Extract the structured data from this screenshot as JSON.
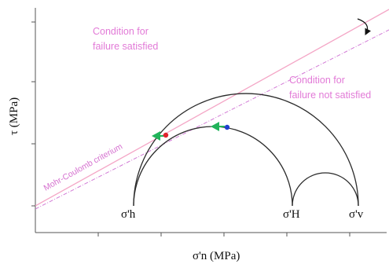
{
  "axes": {
    "x_label": "σ'n (MPa)",
    "y_label": "τ (MPa)"
  },
  "annotations": {
    "satisfied_line1": "Condition for",
    "satisfied_line2": "failure satisfied",
    "not_satisfied_line1": "Condition for",
    "not_satisfied_line2": "failure not satisfied",
    "criterion_label": "Mohr-Coulomb criterium"
  },
  "stress_labels": {
    "sigma_h": "σ'h",
    "sigma_H": "σ'H",
    "sigma_v": "σ'v"
  },
  "colors": {
    "criterion_line": "#f4a6c6",
    "dashed_line": "#d27ad6",
    "annotation_text": "#e27ad7",
    "arrow_green": "#21b35a",
    "point_blue": "#1f3fcf",
    "point_red": "#e0232d",
    "circles": "#2b2b2b"
  }
}
